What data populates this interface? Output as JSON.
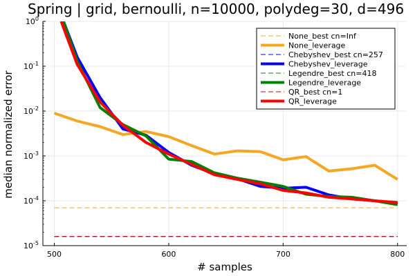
{
  "chart_data": {
    "type": "line",
    "title": "Spring | grid, bernoulli, n=10000, polydeg=30, d=496",
    "xlabel": "# samples",
    "ylabel": "median normalized error",
    "xlim": [
      490,
      808
    ],
    "ylim_log10": [
      -5,
      0
    ],
    "y_scale": "log",
    "grid": true,
    "legend_position": "top-right",
    "x_ticks": [
      500,
      600,
      700,
      800
    ],
    "x_tick_labels": [
      "500",
      "600",
      "700",
      "800"
    ],
    "y_ticks_log10": [
      -5,
      -4,
      -3,
      -2,
      -1,
      0
    ],
    "series": [
      {
        "name": "None_best cn=Inf",
        "color": "#f5a623",
        "dashed": true,
        "width": 1,
        "x": [
          500,
          800
        ],
        "y": [
          7e-05,
          7e-05
        ]
      },
      {
        "name": "None_leverage",
        "color": "#f5a623",
        "dashed": false,
        "width": 4,
        "x": [
          500,
          520,
          540,
          560,
          580,
          600,
          620,
          640,
          660,
          680,
          700,
          720,
          740,
          760,
          780,
          800
        ],
        "y": [
          0.009,
          0.006,
          0.0045,
          0.003,
          0.0035,
          0.0027,
          0.0017,
          0.0011,
          0.0013,
          0.00125,
          0.00082,
          0.00097,
          0.00046,
          0.00052,
          0.00062,
          0.0003
        ]
      },
      {
        "name": "Chebyshev_best cn=257",
        "color": "#0000ff",
        "dashed": true,
        "width": 1,
        "x": [
          500,
          800
        ],
        "y": [
          1.6e-05,
          1.6e-05
        ]
      },
      {
        "name": "Chebyshev_leverage",
        "color": "#0000ff",
        "dashed": false,
        "width": 4,
        "x": [
          508,
          520,
          540,
          560,
          580,
          600,
          620,
          640,
          660,
          680,
          700,
          720,
          740,
          760,
          780,
          800
        ],
        "y": [
          1.0,
          0.16,
          0.02,
          0.004,
          0.0029,
          0.0012,
          0.00062,
          0.0004,
          0.00031,
          0.00021,
          0.00019,
          0.0002,
          0.000135,
          0.00011,
          0.0001,
          8.8e-05
        ]
      },
      {
        "name": "Legendre_best cn=418",
        "color": "#008000",
        "dashed": true,
        "width": 1,
        "x": [
          500,
          800
        ],
        "y": [
          1.6e-05,
          1.6e-05
        ]
      },
      {
        "name": "Legendre_leverage",
        "color": "#008000",
        "dashed": false,
        "width": 4,
        "x": [
          508,
          520,
          540,
          560,
          580,
          600,
          620,
          640,
          660,
          680,
          700,
          720,
          740,
          760,
          780,
          800
        ],
        "y": [
          1.0,
          0.13,
          0.012,
          0.005,
          0.0028,
          0.00085,
          0.00075,
          0.00042,
          0.00032,
          0.00026,
          0.00021,
          0.00014,
          0.000125,
          0.00012,
          0.0001,
          8.2e-05
        ]
      },
      {
        "name": "QR_best cn=1",
        "color": "#cc0000",
        "dashed": true,
        "width": 1,
        "x": [
          500,
          800
        ],
        "y": [
          1.6e-05,
          1.6e-05
        ]
      },
      {
        "name": "QR_leverage",
        "color": "#ff0000",
        "dashed": false,
        "width": 4,
        "x": [
          506,
          520,
          540,
          560,
          580,
          600,
          620,
          640,
          660,
          680,
          700,
          720,
          740,
          760,
          780,
          800
        ],
        "y": [
          1.0,
          0.11,
          0.016,
          0.0048,
          0.002,
          0.0011,
          0.00065,
          0.00038,
          0.0003,
          0.00024,
          0.00017,
          0.00015,
          0.00012,
          0.00011,
          0.0001,
          9.2e-05
        ]
      }
    ]
  }
}
